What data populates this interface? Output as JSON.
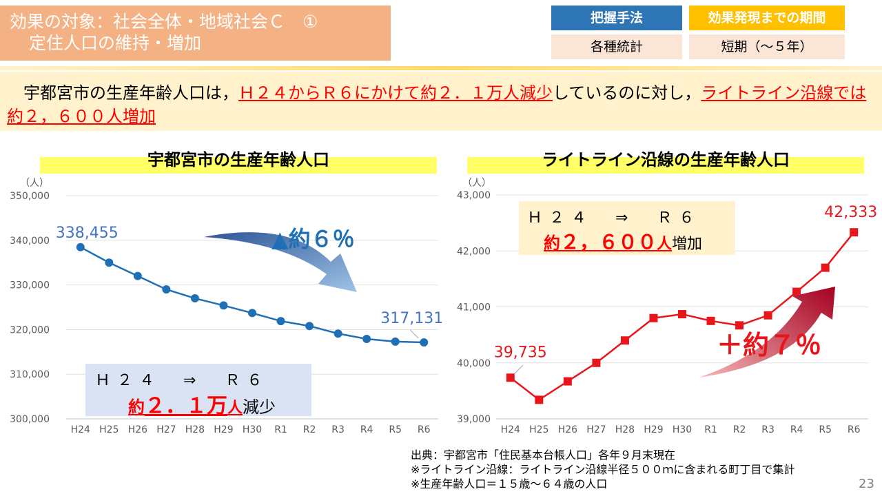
{
  "header": {
    "title_line1": "効果の対象：社会全体・地域社会Ｃ　①",
    "title_line2": "定住人口の維持・増加",
    "method_label": "把握手法",
    "method_value": "各種統計",
    "period_label": "効果発現までの期間",
    "period_value": "短期（～５年）"
  },
  "summary": {
    "part1": "　宇都宮市の生産年齢人口は，",
    "part2": "Ｈ２４からＲ６にかけて約２．１万人減少",
    "part3": "しているのに対し，",
    "part4": "ライトライン沿線では約２，６００人増加"
  },
  "colors": {
    "left_series": "#1f6fb5",
    "right_series": "#e8161b",
    "label_left": "#4472c4",
    "label_right": "#e8161b"
  },
  "chart_data": [
    {
      "type": "line",
      "title": "宇都宮市の生産年齢人口",
      "unit": "（人）",
      "categories": [
        "H24",
        "H25",
        "H26",
        "H27",
        "H28",
        "H29",
        "H30",
        "R1",
        "R2",
        "R3",
        "R4",
        "R5",
        "R6"
      ],
      "values": [
        338455,
        335000,
        332000,
        329000,
        327000,
        325400,
        323700,
        321900,
        320800,
        319100,
        317900,
        317300,
        317131
      ],
      "ylim": [
        300000,
        350000
      ],
      "yticks": [
        "350,000",
        "340,000",
        "330,000",
        "320,000",
        "310,000",
        "300,000"
      ],
      "data_labels": {
        "first": "338,455",
        "last": "317,131"
      },
      "annotation": "▲約６％",
      "box": {
        "line1": "Ｈ２４　⇒　Ｒ６",
        "prefix": "約",
        "big": "２．１万",
        "unit": "人",
        "suffix": "減少"
      }
    },
    {
      "type": "line",
      "title": "ライトライン沿線の生産年齢人口",
      "unit": "（人）",
      "categories": [
        "H24",
        "H25",
        "H26",
        "H27",
        "H28",
        "H29",
        "H30",
        "R1",
        "R2",
        "R3",
        "R4",
        "R5",
        "R6"
      ],
      "values": [
        39735,
        39340,
        39670,
        40000,
        40400,
        40800,
        40870,
        40750,
        40670,
        40850,
        41270,
        41700,
        42333
      ],
      "ylim": [
        39000,
        43000
      ],
      "yticks": [
        "43,000",
        "42,000",
        "41,000",
        "40,000",
        "39,000"
      ],
      "data_labels": {
        "first": "39,735",
        "last": "42,333"
      },
      "annotation": "＋約７％",
      "box": {
        "line1": "Ｈ２４　⇒　Ｒ６",
        "prefix": "約",
        "big": "２，６００",
        "unit": "人",
        "suffix": "増加"
      }
    }
  ],
  "footer": {
    "source": "出典：宇都宮市「住民基本台帳人口」各年９月末現在",
    "note1": "※ライトライン沿線：ライトライン沿線半径５００ｍに含まれる町丁目で集計",
    "note2": "※生産年齢人口＝１５歳～６４歳の人口",
    "page": "23"
  }
}
